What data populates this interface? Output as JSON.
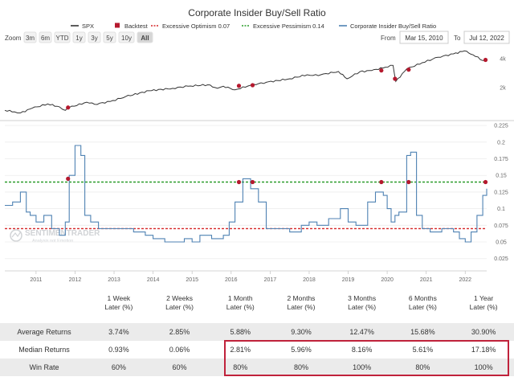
{
  "chart_data": {
    "type": "line",
    "title": "Corporate Insider Buy/Sell Ratio",
    "legend": [
      {
        "label": "SPX",
        "color": "#333333",
        "symbol": "line"
      },
      {
        "label": "Backtest",
        "color": "#b5192e",
        "symbol": "square"
      },
      {
        "label": "Excessive Optimism 0.07",
        "color": "#d62728",
        "symbol": "dashed"
      },
      {
        "label": "Excessive Pessimism 0.14",
        "color": "#2a9d2a",
        "symbol": "dashed"
      },
      {
        "label": "Corporate Insider Buy/Sell Ratio",
        "color": "#4f82b3",
        "symbol": "line"
      }
    ],
    "zoom": {
      "label": "Zoom",
      "buttons": [
        "3m",
        "6m",
        "YTD",
        "1y",
        "3y",
        "5y",
        "10y",
        "All"
      ],
      "active": "All"
    },
    "range": {
      "from_label": "From",
      "from": "Mar 15, 2010",
      "to_label": "To",
      "to": "Jul 12, 2022"
    },
    "x_ticks": [
      "2011",
      "2012",
      "2013",
      "2014",
      "2015",
      "2016",
      "2017",
      "2018",
      "2019",
      "2020",
      "2021",
      "2022"
    ],
    "x_range": [
      2010.2,
      2022.55
    ],
    "spx": {
      "name": "SPX",
      "ticks": [
        "4k",
        "2k"
      ],
      "tick_values": [
        4000,
        2000
      ],
      "ylim_log": [
        1050,
        4900
      ],
      "x": [
        2010.2,
        2010.45,
        2010.6,
        2010.9,
        2011.3,
        2011.6,
        2011.75,
        2011.85,
        2012.3,
        2012.5,
        2012.9,
        2013.3,
        2013.9,
        2014.5,
        2014.9,
        2015.4,
        2015.65,
        2015.8,
        2016.1,
        2016.5,
        2016.9,
        2017.5,
        2017.95,
        2018.1,
        2018.3,
        2018.75,
        2018.97,
        2019.3,
        2019.6,
        2019.95,
        2020.15,
        2020.22,
        2020.5,
        2020.9,
        2021.3,
        2021.7,
        2021.98,
        2022.2,
        2022.45,
        2022.55
      ],
      "y": [
        1150,
        1110,
        1080,
        1210,
        1340,
        1250,
        1150,
        1230,
        1400,
        1330,
        1420,
        1600,
        1840,
        1950,
        2050,
        2120,
        1950,
        2050,
        1880,
        2100,
        2250,
        2450,
        2700,
        2650,
        2700,
        2920,
        2450,
        2900,
        2980,
        3230,
        3380,
        2300,
        3100,
        3600,
        4100,
        4450,
        4780,
        4350,
        3800,
        3900
      ]
    },
    "insider": {
      "name": "Corporate Insider Buy/Sell Ratio",
      "ticks": [
        "0.225",
        "0.2",
        "0.175",
        "0.15",
        "0.125",
        "0.1",
        "0.075",
        "0.05",
        "0.025"
      ],
      "ylim": [
        0.015,
        0.23
      ],
      "x": [
        2010.2,
        2010.4,
        2010.6,
        2010.75,
        2010.85,
        2011.0,
        2011.2,
        2011.4,
        2011.6,
        2011.75,
        2011.85,
        2012.0,
        2012.15,
        2012.25,
        2012.4,
        2012.6,
        2013.0,
        2013.5,
        2013.8,
        2014.0,
        2014.3,
        2014.6,
        2014.8,
        2015.0,
        2015.2,
        2015.5,
        2015.8,
        2015.95,
        2016.1,
        2016.3,
        2016.5,
        2016.7,
        2016.9,
        2017.2,
        2017.5,
        2017.8,
        2018.0,
        2018.2,
        2018.5,
        2018.8,
        2019.0,
        2019.2,
        2019.5,
        2019.7,
        2019.9,
        2020.0,
        2020.1,
        2020.2,
        2020.3,
        2020.5,
        2020.6,
        2020.75,
        2020.9,
        2021.1,
        2021.4,
        2021.7,
        2021.85,
        2022.0,
        2022.15,
        2022.3,
        2022.45,
        2022.55
      ],
      "y": [
        0.105,
        0.11,
        0.125,
        0.095,
        0.09,
        0.08,
        0.09,
        0.07,
        0.06,
        0.08,
        0.15,
        0.195,
        0.18,
        0.09,
        0.08,
        0.07,
        0.07,
        0.065,
        0.06,
        0.055,
        0.05,
        0.05,
        0.055,
        0.05,
        0.06,
        0.055,
        0.06,
        0.08,
        0.11,
        0.145,
        0.13,
        0.11,
        0.07,
        0.07,
        0.065,
        0.075,
        0.08,
        0.075,
        0.085,
        0.1,
        0.08,
        0.075,
        0.11,
        0.125,
        0.12,
        0.1,
        0.08,
        0.09,
        0.095,
        0.18,
        0.185,
        0.09,
        0.07,
        0.065,
        0.07,
        0.065,
        0.055,
        0.05,
        0.065,
        0.09,
        0.12,
        0.13
      ]
    },
    "thresholds": {
      "optimism": 0.07,
      "pessimism": 0.14
    },
    "backtest_points": {
      "x": [
        2011.82,
        2016.2,
        2016.55,
        2019.85,
        2020.55,
        2022.52
      ],
      "insider_y": [
        0.145,
        0.14,
        0.14,
        0.14,
        0.14,
        0.14
      ],
      "spx_y": [
        1230,
        2070,
        2100,
        2990,
        3050,
        3850
      ]
    },
    "extra_spx_backtest": {
      "x": [
        2020.2
      ],
      "spx_y": [
        2450
      ]
    },
    "watermark": {
      "line1": "SENTIMENTRADER",
      "line2": "Analysis not Emotion"
    }
  },
  "stats_table": {
    "headers": [
      {
        "line1": "1 Week",
        "line2": "Later (%)"
      },
      {
        "line1": "2 Weeks",
        "line2": "Later (%)"
      },
      {
        "line1": "1 Month",
        "line2": "Later (%)"
      },
      {
        "line1": "2 Months",
        "line2": "Later (%)"
      },
      {
        "line1": "3 Months",
        "line2": "Later (%)"
      },
      {
        "line1": "6 Months",
        "line2": "Later (%)"
      },
      {
        "line1": "1 Year",
        "line2": "Later (%)"
      }
    ],
    "rows": [
      {
        "label": "Average Returns",
        "values": [
          "3.74%",
          "2.85%",
          "5.88%",
          "9.30%",
          "12.47%",
          "15.68%",
          "30.90%"
        ]
      },
      {
        "label": "Median Returns",
        "values": [
          "0.93%",
          "0.06%",
          "2.81%",
          "5.96%",
          "8.16%",
          "5.61%",
          "17.18%"
        ]
      },
      {
        "label": "Win Rate",
        "values": [
          "60%",
          "60%",
          "80%",
          "80%",
          "100%",
          "80%",
          "100%"
        ]
      }
    ]
  },
  "colors": {
    "spx": "#333333",
    "insider": "#4f82b3",
    "backtest": "#b5192e",
    "optimism": "#d62728",
    "pessimism": "#2a9d2a",
    "highlight": "#c0223b"
  }
}
